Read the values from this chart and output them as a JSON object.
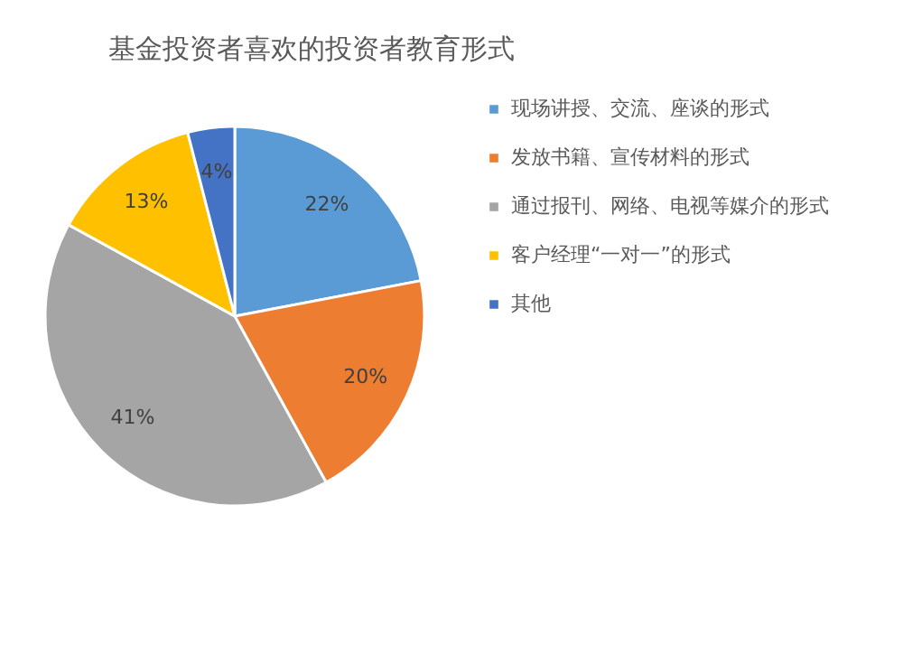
{
  "chart_data": {
    "type": "pie",
    "title": "基金投资者喜欢的投资者教育形式",
    "categories": [
      "现场讲授、交流、座谈的形式",
      "发放书籍、宣传材料的形式",
      "通过报刊、网络、电视等媒介的形式",
      "客户经理“一对一”的形式",
      "其他"
    ],
    "values": [
      22,
      20,
      41,
      13,
      4
    ],
    "colors": [
      "#5b9bd5",
      "#ed7d31",
      "#a5a5a5",
      "#ffc000",
      "#4472c4"
    ],
    "value_labels": [
      "22%",
      "20%",
      "41%",
      "13%",
      "4%"
    ],
    "legend": "right"
  }
}
